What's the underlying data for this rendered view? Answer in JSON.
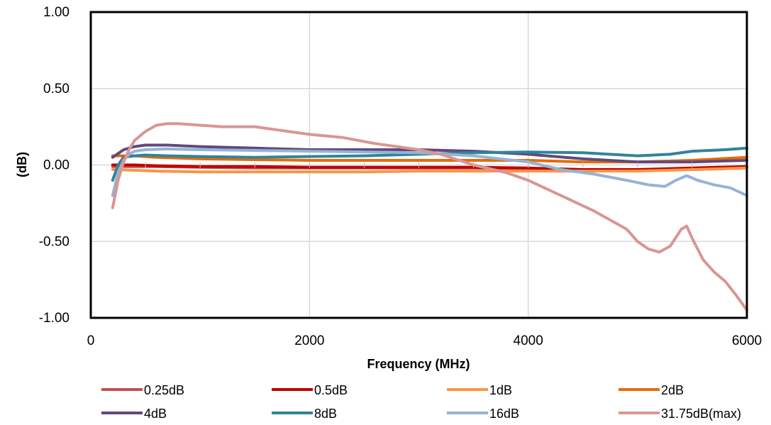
{
  "chart_data": {
    "type": "line",
    "title": "",
    "xlabel": "Frequency (MHz)",
    "ylabel": "(dB)",
    "xlim": [
      0,
      6000
    ],
    "ylim": [
      -1.0,
      1.0
    ],
    "x_ticks": [
      "0",
      "2000",
      "4000",
      "6000"
    ],
    "x_tick_values": [
      0,
      2000,
      4000,
      6000
    ],
    "y_ticks": [
      "1.00",
      "0.50",
      "0.00",
      "-0.50",
      "-1.00"
    ],
    "y_tick_values": [
      1.0,
      0.5,
      0.0,
      -0.5,
      -1.0
    ],
    "grid": true,
    "legend_position": "bottom",
    "series": [
      {
        "name": "0.25dB",
        "color": "#c0504d",
        "x": [
          200,
          400,
          600,
          1000,
          1500,
          2000,
          2500,
          3000,
          3500,
          4000,
          4500,
          5000,
          5500,
          6000
        ],
        "y": [
          -0.01,
          -0.01,
          -0.01,
          -0.015,
          -0.02,
          -0.02,
          -0.02,
          -0.02,
          -0.02,
          -0.025,
          -0.03,
          -0.03,
          -0.03,
          -0.02
        ]
      },
      {
        "name": "0.5dB",
        "color": "#c00000",
        "x": [
          200,
          400,
          600,
          1000,
          1500,
          2000,
          2500,
          3000,
          3500,
          4000,
          4500,
          5000,
          5500,
          6000
        ],
        "y": [
          0.0,
          0.0,
          -0.005,
          -0.01,
          -0.01,
          -0.015,
          -0.015,
          -0.015,
          -0.015,
          -0.02,
          -0.03,
          -0.03,
          -0.02,
          -0.01
        ]
      },
      {
        "name": "1dB",
        "color": "#f79646",
        "x": [
          200,
          400,
          600,
          1000,
          1500,
          2000,
          2500,
          3000,
          3500,
          4000,
          4500,
          5000,
          5500,
          6000
        ],
        "y": [
          -0.03,
          -0.035,
          -0.04,
          -0.045,
          -0.045,
          -0.045,
          -0.045,
          -0.04,
          -0.04,
          -0.04,
          -0.04,
          -0.04,
          -0.03,
          -0.02
        ]
      },
      {
        "name": "2dB",
        "color": "#e46c0a",
        "x": [
          200,
          400,
          600,
          1000,
          1500,
          2000,
          2500,
          3000,
          3500,
          4000,
          4500,
          5000,
          5500,
          6000
        ],
        "y": [
          0.06,
          0.06,
          0.05,
          0.04,
          0.035,
          0.03,
          0.03,
          0.03,
          0.03,
          0.03,
          0.02,
          0.02,
          0.03,
          0.05
        ]
      },
      {
        "name": "4dB",
        "color": "#604a7b",
        "x": [
          200,
          300,
          400,
          500,
          700,
          1000,
          1500,
          2000,
          2500,
          3000,
          3500,
          4000,
          4500,
          5000,
          5500,
          6000
        ],
        "y": [
          0.05,
          0.1,
          0.12,
          0.13,
          0.13,
          0.12,
          0.11,
          0.1,
          0.1,
          0.1,
          0.09,
          0.07,
          0.04,
          0.02,
          0.02,
          0.03
        ]
      },
      {
        "name": "8dB",
        "color": "#31849b",
        "x": [
          200,
          250,
          300,
          400,
          500,
          700,
          1000,
          1500,
          2000,
          2500,
          3000,
          3500,
          4000,
          4500,
          5000,
          5300,
          5500,
          5800,
          6000
        ],
        "y": [
          -0.1,
          0.0,
          0.05,
          0.06,
          0.065,
          0.06,
          0.055,
          0.05,
          0.055,
          0.06,
          0.07,
          0.08,
          0.085,
          0.08,
          0.06,
          0.07,
          0.09,
          0.1,
          0.11
        ]
      },
      {
        "name": "16dB",
        "color": "#95b3d7",
        "x": [
          200,
          250,
          300,
          350,
          400,
          500,
          700,
          1000,
          1500,
          2000,
          2500,
          3000,
          3500,
          4000,
          4300,
          4600,
          4900,
          5100,
          5250,
          5350,
          5450,
          5550,
          5700,
          5850,
          6000
        ],
        "y": [
          -0.2,
          -0.05,
          0.03,
          0.07,
          0.09,
          0.1,
          0.105,
          0.1,
          0.095,
          0.09,
          0.085,
          0.08,
          0.06,
          0.02,
          -0.03,
          -0.06,
          -0.1,
          -0.13,
          -0.14,
          -0.1,
          -0.07,
          -0.1,
          -0.13,
          -0.15,
          -0.2
        ]
      },
      {
        "name": "31.75dB(max)",
        "color": "#d99694",
        "x": [
          200,
          250,
          300,
          350,
          400,
          500,
          600,
          700,
          800,
          1000,
          1200,
          1500,
          1800,
          2000,
          2300,
          2600,
          2800,
          3000,
          3200,
          3500,
          3800,
          4000,
          4300,
          4600,
          4800,
          4900,
          5000,
          5100,
          5200,
          5300,
          5400,
          5450,
          5500,
          5600,
          5700,
          5800,
          5900,
          6000
        ],
        "y": [
          -0.28,
          -0.1,
          0.02,
          0.1,
          0.16,
          0.22,
          0.26,
          0.27,
          0.27,
          0.26,
          0.25,
          0.25,
          0.22,
          0.2,
          0.18,
          0.14,
          0.12,
          0.1,
          0.07,
          0.0,
          -0.05,
          -0.1,
          -0.2,
          -0.3,
          -0.38,
          -0.42,
          -0.5,
          -0.55,
          -0.57,
          -0.53,
          -0.42,
          -0.4,
          -0.48,
          -0.62,
          -0.7,
          -0.76,
          -0.85,
          -0.95
        ]
      }
    ]
  }
}
